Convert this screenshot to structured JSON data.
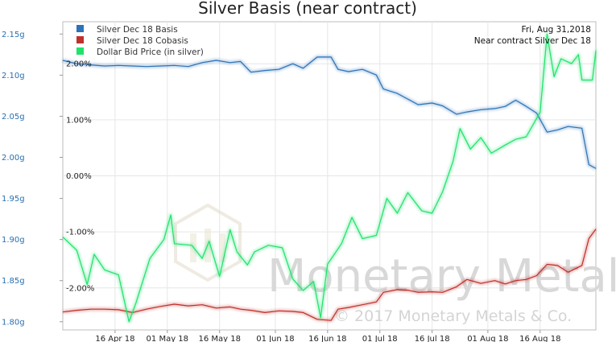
{
  "chart_data": {
    "type": "line",
    "title": "Silver Basis (near contract)",
    "info_lines": [
      "Fri, Aug 31,2018",
      "Near contract Silver Dec 18"
    ],
    "watermark": [
      "Monetary Metals",
      "© 2017 Monetary Metals & Co."
    ],
    "x_ticks": [
      {
        "date": "2018-04-16",
        "label": "16 Apr 18"
      },
      {
        "date": "2018-05-01",
        "label": "01 May 18"
      },
      {
        "date": "2018-05-16",
        "label": "16 May 18"
      },
      {
        "date": "2018-06-01",
        "label": "01 Jun 18"
      },
      {
        "date": "2018-06-16",
        "label": "16 Jun 18"
      },
      {
        "date": "2018-07-01",
        "label": "01 Jul 18"
      },
      {
        "date": "2018-07-16",
        "label": "16 Jul 18"
      },
      {
        "date": "2018-08-01",
        "label": "01 Aug 18"
      },
      {
        "date": "2018-08-16",
        "label": "16 Aug 18"
      }
    ],
    "xlim": [
      "2018-04-01",
      "2018-09-01"
    ],
    "left_axis": {
      "ylim": [
        1.79,
        2.165
      ],
      "ticks": [
        {
          "value": 1.8,
          "label": "1.80g"
        },
        {
          "value": 1.85,
          "label": "1.85g"
        },
        {
          "value": 1.9,
          "label": "1.90g"
        },
        {
          "value": 1.95,
          "label": "1.95g"
        },
        {
          "value": 2.0,
          "label": "2.00g"
        },
        {
          "value": 2.05,
          "label": "2.05g"
        },
        {
          "value": 2.1,
          "label": "2.10g"
        },
        {
          "value": 2.15,
          "label": "2.15g"
        }
      ]
    },
    "right_axis": {
      "ylim": [
        -2.75,
        2.75
      ],
      "ticks": [
        {
          "value": -2.0,
          "label": "-2.00%"
        },
        {
          "value": -1.0,
          "label": "-1.00%"
        },
        {
          "value": 0.0,
          "label": "0.00%"
        },
        {
          "value": 1.0,
          "label": "1.00%"
        },
        {
          "value": 2.0,
          "label": "2.00%"
        }
      ]
    },
    "grid": true,
    "legend_position": "top-left",
    "series": [
      {
        "name": "Silver Dec 18 Basis",
        "color": "#2d73b8",
        "axis": "right",
        "points": [
          [
            "2018-04-01",
            2.06
          ],
          [
            "2018-04-05",
            2.0
          ],
          [
            "2018-04-09",
            1.98
          ],
          [
            "2018-04-13",
            1.96
          ],
          [
            "2018-04-17",
            1.97
          ],
          [
            "2018-04-21",
            1.96
          ],
          [
            "2018-04-25",
            1.95
          ],
          [
            "2018-04-29",
            1.96
          ],
          [
            "2018-05-03",
            1.97
          ],
          [
            "2018-05-07",
            1.95
          ],
          [
            "2018-05-11",
            2.02
          ],
          [
            "2018-05-15",
            2.06
          ],
          [
            "2018-05-19",
            2.02
          ],
          [
            "2018-05-22",
            2.04
          ],
          [
            "2018-05-25",
            1.85
          ],
          [
            "2018-05-29",
            1.88
          ],
          [
            "2018-06-02",
            1.9
          ],
          [
            "2018-06-06",
            2.0
          ],
          [
            "2018-06-09",
            1.92
          ],
          [
            "2018-06-13",
            2.12
          ],
          [
            "2018-06-17",
            2.12
          ],
          [
            "2018-06-19",
            1.9
          ],
          [
            "2018-06-22",
            1.86
          ],
          [
            "2018-06-26",
            1.9
          ],
          [
            "2018-06-30",
            1.8
          ],
          [
            "2018-07-02",
            1.55
          ],
          [
            "2018-07-06",
            1.47
          ],
          [
            "2018-07-09",
            1.37
          ],
          [
            "2018-07-12",
            1.27
          ],
          [
            "2018-07-16",
            1.3
          ],
          [
            "2018-07-19",
            1.25
          ],
          [
            "2018-07-23",
            1.1
          ],
          [
            "2018-07-26",
            1.14
          ],
          [
            "2018-07-30",
            1.18
          ],
          [
            "2018-08-03",
            1.2
          ],
          [
            "2018-08-06",
            1.24
          ],
          [
            "2018-08-09",
            1.35
          ],
          [
            "2018-08-12",
            1.24
          ],
          [
            "2018-08-15",
            1.12
          ],
          [
            "2018-08-18",
            0.78
          ],
          [
            "2018-08-21",
            0.82
          ],
          [
            "2018-08-24",
            0.88
          ],
          [
            "2018-08-28",
            0.85
          ],
          [
            "2018-08-30",
            0.2
          ],
          [
            "2018-09-01",
            0.13
          ]
        ]
      },
      {
        "name": "Silver Dec 18 Cobasis",
        "color": "#c0302c",
        "axis": "right",
        "points": [
          [
            "2018-04-01",
            -2.43
          ],
          [
            "2018-04-05",
            -2.4
          ],
          [
            "2018-04-09",
            -2.38
          ],
          [
            "2018-04-13",
            -2.38
          ],
          [
            "2018-04-17",
            -2.39
          ],
          [
            "2018-04-21",
            -2.44
          ],
          [
            "2018-04-25",
            -2.38
          ],
          [
            "2018-04-29",
            -2.33
          ],
          [
            "2018-05-03",
            -2.29
          ],
          [
            "2018-05-07",
            -2.32
          ],
          [
            "2018-05-11",
            -2.3
          ],
          [
            "2018-05-15",
            -2.36
          ],
          [
            "2018-05-19",
            -2.34
          ],
          [
            "2018-05-22",
            -2.38
          ],
          [
            "2018-05-25",
            -2.4
          ],
          [
            "2018-05-29",
            -2.44
          ],
          [
            "2018-06-02",
            -2.41
          ],
          [
            "2018-06-06",
            -2.42
          ],
          [
            "2018-06-09",
            -2.44
          ],
          [
            "2018-06-13",
            -2.56
          ],
          [
            "2018-06-17",
            -2.58
          ],
          [
            "2018-06-19",
            -2.38
          ],
          [
            "2018-06-22",
            -2.35
          ],
          [
            "2018-06-26",
            -2.3
          ],
          [
            "2018-06-30",
            -2.25
          ],
          [
            "2018-07-02",
            -2.08
          ],
          [
            "2018-07-06",
            -2.03
          ],
          [
            "2018-07-09",
            -2.04
          ],
          [
            "2018-07-12",
            -2.08
          ],
          [
            "2018-07-16",
            -2.07
          ],
          [
            "2018-07-19",
            -2.08
          ],
          [
            "2018-07-23",
            -1.98
          ],
          [
            "2018-07-26",
            -1.85
          ],
          [
            "2018-07-30",
            -1.92
          ],
          [
            "2018-08-03",
            -1.87
          ],
          [
            "2018-08-06",
            -1.93
          ],
          [
            "2018-08-09",
            -1.87
          ],
          [
            "2018-08-12",
            -1.85
          ],
          [
            "2018-08-15",
            -1.78
          ],
          [
            "2018-08-18",
            -1.58
          ],
          [
            "2018-08-21",
            -1.6
          ],
          [
            "2018-08-24",
            -1.72
          ],
          [
            "2018-08-28",
            -1.6
          ],
          [
            "2018-08-30",
            -1.12
          ],
          [
            "2018-09-01",
            -0.95
          ]
        ]
      },
      {
        "name": "Dollar Bid Price (in silver)",
        "color": "#1fe36a",
        "axis": "left",
        "points": [
          [
            "2018-04-01",
            1.903
          ],
          [
            "2018-04-05",
            1.887
          ],
          [
            "2018-04-08",
            1.845
          ],
          [
            "2018-04-10",
            1.882
          ],
          [
            "2018-04-13",
            1.863
          ],
          [
            "2018-04-17",
            1.857
          ],
          [
            "2018-04-20",
            1.8
          ],
          [
            "2018-04-22",
            1.823
          ],
          [
            "2018-04-26",
            1.877
          ],
          [
            "2018-04-30",
            1.9
          ],
          [
            "2018-05-02",
            1.93
          ],
          [
            "2018-05-03",
            1.895
          ],
          [
            "2018-05-08",
            1.893
          ],
          [
            "2018-05-11",
            1.877
          ],
          [
            "2018-05-13",
            1.898
          ],
          [
            "2018-05-16",
            1.855
          ],
          [
            "2018-05-19",
            1.912
          ],
          [
            "2018-05-21",
            1.885
          ],
          [
            "2018-05-24",
            1.869
          ],
          [
            "2018-05-26",
            1.885
          ],
          [
            "2018-05-30",
            1.893
          ],
          [
            "2018-06-03",
            1.89
          ],
          [
            "2018-06-06",
            1.852
          ],
          [
            "2018-06-09",
            1.838
          ],
          [
            "2018-06-12",
            1.849
          ],
          [
            "2018-06-14",
            1.805
          ],
          [
            "2018-06-16",
            1.87
          ],
          [
            "2018-06-20",
            1.895
          ],
          [
            "2018-06-23",
            1.927
          ],
          [
            "2018-06-26",
            1.901
          ],
          [
            "2018-06-30",
            1.905
          ],
          [
            "2018-07-03",
            1.95
          ],
          [
            "2018-07-06",
            1.932
          ],
          [
            "2018-07-09",
            1.957
          ],
          [
            "2018-07-13",
            1.935
          ],
          [
            "2018-07-16",
            1.932
          ],
          [
            "2018-07-19",
            1.958
          ],
          [
            "2018-07-22",
            1.995
          ],
          [
            "2018-07-24",
            2.035
          ],
          [
            "2018-07-27",
            2.01
          ],
          [
            "2018-07-30",
            2.024
          ],
          [
            "2018-08-02",
            2.005
          ],
          [
            "2018-08-06",
            2.015
          ],
          [
            "2018-08-09",
            2.022
          ],
          [
            "2018-08-12",
            2.025
          ],
          [
            "2018-08-16",
            2.055
          ],
          [
            "2018-08-18",
            2.15
          ],
          [
            "2018-08-20",
            2.098
          ],
          [
            "2018-08-22",
            2.12
          ],
          [
            "2018-08-25",
            2.114
          ],
          [
            "2018-08-27",
            2.125
          ],
          [
            "2018-08-28",
            2.094
          ],
          [
            "2018-08-31",
            2.094
          ],
          [
            "2018-09-01",
            2.13
          ]
        ]
      }
    ]
  }
}
